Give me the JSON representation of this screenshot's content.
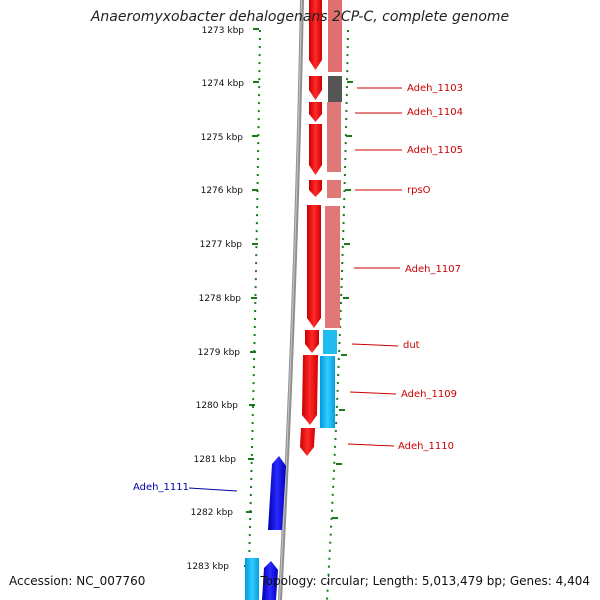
{
  "title": "Anaeromyxobacter dehalogenans 2CP-C, complete genome",
  "footer": {
    "accession": "Accession: NC_007760",
    "info": "Topology: circular; Length: 5,013,479 bp; Genes: 4,404"
  },
  "colors": {
    "forward_cds": "#ff0000",
    "reverse_cds": "#0000ff",
    "rna": "#00aaff",
    "other": "#555555",
    "backbone": "#888888",
    "tick": "#1a7a1a",
    "forward_label": "#cc0000",
    "reverse_label": "#0000aa"
  },
  "scale": {
    "unit": "kbp",
    "ticks": [
      "1273 kbp",
      "1274 kbp",
      "1275 kbp",
      "1276 kbp",
      "1277 kbp",
      "1278 kbp",
      "1279 kbp",
      "1280 kbp",
      "1281 kbp",
      "1282 kbp",
      "1283 kbp"
    ]
  },
  "gene_labels": [
    {
      "text": "Adeh_1103",
      "strand": "forward"
    },
    {
      "text": "Adeh_1104",
      "strand": "forward"
    },
    {
      "text": "Adeh_1105",
      "strand": "forward"
    },
    {
      "text": "rpsO",
      "strand": "forward"
    },
    {
      "text": "Adeh_1107",
      "strand": "forward"
    },
    {
      "text": "dut",
      "strand": "forward"
    },
    {
      "text": "Adeh_1109",
      "strand": "forward"
    },
    {
      "text": "Adeh_1110",
      "strand": "forward"
    },
    {
      "text": "Adeh_1111",
      "strand": "reverse"
    }
  ]
}
